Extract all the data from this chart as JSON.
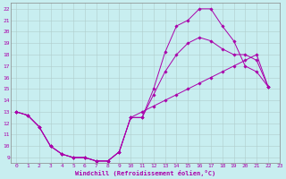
{
  "xlabel": "Windchill (Refroidissement éolien,°C)",
  "bg_color": "#c8eef0",
  "grid_color": "#b0cccc",
  "line_color": "#aa00aa",
  "xlim": [
    -0.5,
    23
  ],
  "ylim": [
    8.5,
    22.5
  ],
  "yticks": [
    9,
    10,
    11,
    12,
    13,
    14,
    15,
    16,
    17,
    18,
    19,
    20,
    21,
    22
  ],
  "xticks": [
    0,
    1,
    2,
    3,
    4,
    5,
    6,
    7,
    8,
    9,
    10,
    11,
    12,
    13,
    14,
    15,
    16,
    17,
    18,
    19,
    20,
    21,
    22,
    23
  ],
  "line1_x": [
    0,
    1,
    2,
    3,
    4,
    5,
    6,
    7,
    8,
    9,
    10,
    11,
    12,
    13,
    14,
    15,
    16,
    17,
    18,
    19,
    20,
    21,
    22
  ],
  "line1_y": [
    13,
    12.7,
    11.7,
    10.0,
    9.3,
    9.0,
    9.0,
    8.7,
    8.7,
    9.5,
    12.5,
    13.0,
    13.5,
    14.0,
    14.5,
    15.0,
    15.5,
    16.0,
    16.5,
    17.0,
    17.5,
    18.0,
    15.2
  ],
  "line2_x": [
    0,
    1,
    2,
    3,
    4,
    5,
    6,
    7,
    8,
    9,
    10,
    11,
    12,
    13,
    14,
    15,
    16,
    17,
    18,
    19,
    20,
    21,
    22
  ],
  "line2_y": [
    13,
    12.7,
    11.7,
    10.0,
    9.3,
    9.0,
    9.0,
    8.7,
    8.7,
    9.5,
    12.5,
    12.5,
    15.0,
    18.2,
    20.5,
    21.0,
    22.0,
    22.0,
    20.5,
    19.2,
    17.0,
    16.5,
    15.2
  ],
  "line3_x": [
    0,
    1,
    2,
    3,
    4,
    5,
    6,
    7,
    8,
    9,
    10,
    11,
    12,
    13,
    14,
    15,
    16,
    17,
    18,
    19,
    20,
    21,
    22
  ],
  "line3_y": [
    13,
    12.7,
    11.7,
    10.0,
    9.3,
    9.0,
    9.0,
    8.7,
    8.7,
    9.5,
    12.5,
    12.5,
    14.5,
    16.5,
    18.0,
    19.0,
    19.5,
    19.2,
    18.5,
    18.0,
    18.0,
    17.5,
    15.2
  ]
}
